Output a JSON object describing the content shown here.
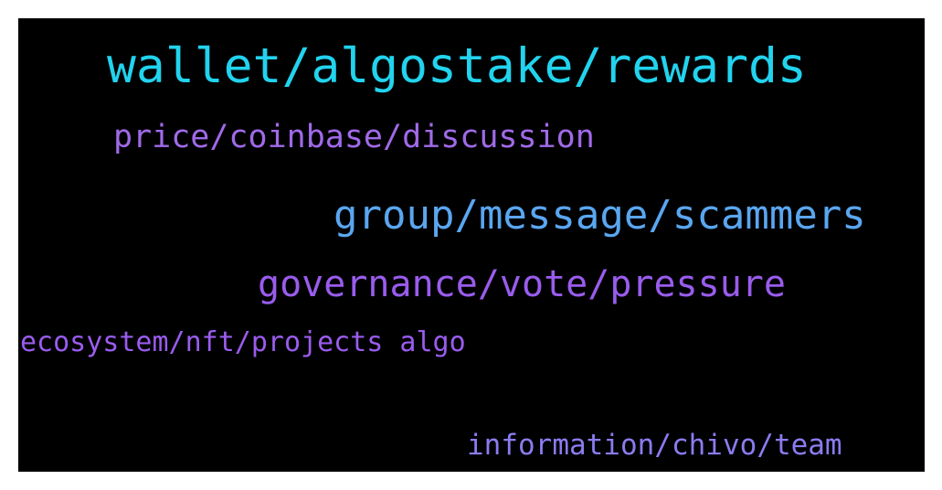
{
  "word_cloud": {
    "background_color": "#000000",
    "words": [
      {
        "text": "wallet/algostake/rewards",
        "color": "#22d3ee"
      },
      {
        "text": "price/coinbase/discussion",
        "color": "#a06ae8"
      },
      {
        "text": "group/message/scammers",
        "color": "#5aa6f0"
      },
      {
        "text": "governance/vote/pressure",
        "color": "#9a5cee"
      },
      {
        "text": "ecosystem/nft/projects algo",
        "color": "#9a5cee"
      },
      {
        "text": "information/chivo/team",
        "color": "#8a7cf0"
      }
    ]
  }
}
